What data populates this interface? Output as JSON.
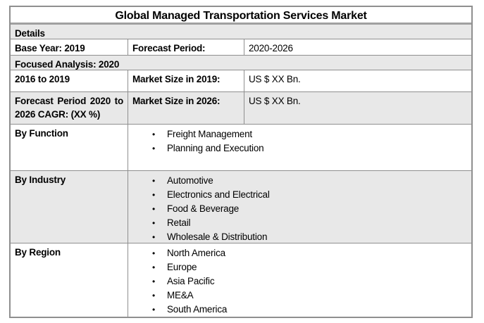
{
  "title": "Global Managed Transportation Services Market",
  "icons": {
    "bullet": "•"
  },
  "colors": {
    "row_shade": "#e8e8e8",
    "border": "#8f8f8f",
    "background": "#ffffff",
    "text": "#000000"
  },
  "details_header": "Details",
  "rows": {
    "base_year": {
      "label": "Base Year: 2019",
      "forecast_period_label": "Forecast Period:",
      "forecast_period_value": "2020-2026"
    },
    "focused_analysis": "Focused Analysis: 2020",
    "historic": {
      "label": "2016 to 2019",
      "market_size_label": "Market Size in 2019:",
      "market_size_value": "US $ XX Bn."
    },
    "forecast": {
      "label": "Forecast Period 2020 to 2026 CAGR: (XX %)",
      "market_size_label": "Market Size in 2026:",
      "market_size_value": "US $ XX Bn."
    }
  },
  "segments": [
    {
      "label": "By Function",
      "items": [
        "Freight Management",
        "Planning and Execution"
      ]
    },
    {
      "label": "By Industry",
      "items": [
        "Automotive",
        "Electronics and Electrical",
        "Food & Beverage",
        "Retail",
        "Wholesale & Distribution"
      ]
    },
    {
      "label": "By Region",
      "items": [
        "North America",
        "Europe",
        "Asia Pacific",
        "ME&A",
        "South America"
      ]
    }
  ]
}
